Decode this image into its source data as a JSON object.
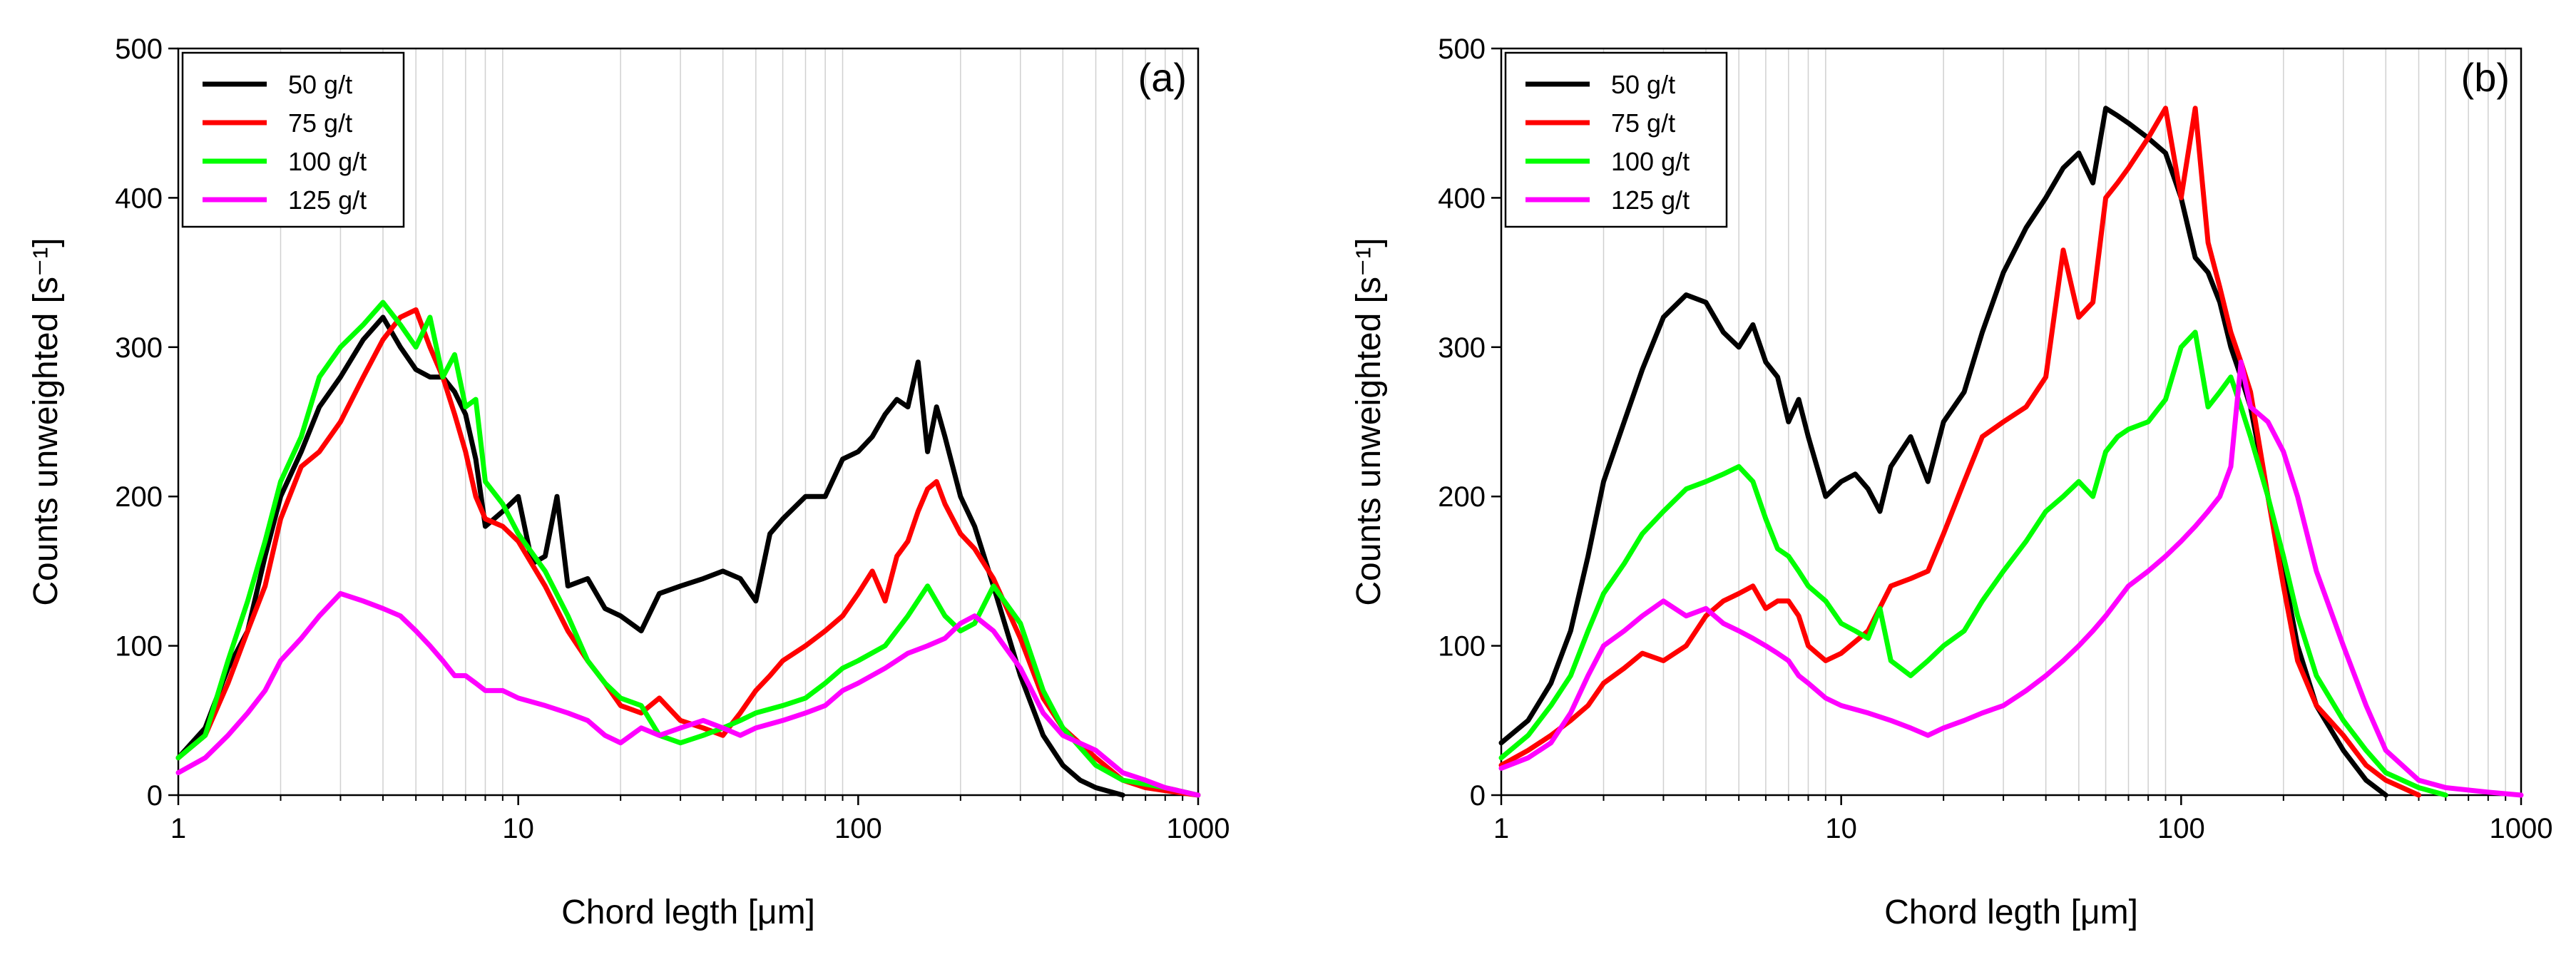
{
  "chart_data": [
    {
      "type": "line",
      "panel_label": "(a)",
      "xlabel": "Chord legth [μm]",
      "ylabel": "Counts unweighted [s⁻¹]",
      "xscale": "log",
      "xlim": [
        1,
        1000
      ],
      "ylim": [
        0,
        500
      ],
      "xticks": [
        1,
        10,
        100,
        1000
      ],
      "xtick_labels": [
        "1",
        "10",
        "100",
        "1000"
      ],
      "yticks": [
        0,
        100,
        200,
        300,
        400,
        500
      ],
      "ytick_labels": [
        "0",
        "100",
        "200",
        "300",
        "400",
        "500"
      ],
      "grid": "vertical minor lines",
      "legend_position": "top-left",
      "series": [
        {
          "name": "50 g/t",
          "color": "#000000",
          "x": [
            1.0,
            1.2,
            1.4,
            1.6,
            1.8,
            2.0,
            2.3,
            2.6,
            3.0,
            3.5,
            4.0,
            4.5,
            5.0,
            5.5,
            6.0,
            6.5,
            7.0,
            7.5,
            8.0,
            9.0,
            10,
            11,
            12,
            13,
            14,
            16,
            18,
            20,
            23,
            26,
            30,
            35,
            40,
            45,
            50,
            55,
            60,
            70,
            80,
            90,
            100,
            110,
            120,
            130,
            140,
            150,
            160,
            170,
            180,
            200,
            220,
            250,
            300,
            350,
            400,
            450,
            500,
            600
          ],
          "y": [
            25,
            45,
            85,
            110,
            160,
            200,
            230,
            260,
            280,
            305,
            320,
            300,
            285,
            280,
            280,
            270,
            255,
            225,
            180,
            190,
            200,
            155,
            160,
            200,
            140,
            145,
            125,
            120,
            110,
            135,
            140,
            145,
            150,
            145,
            130,
            175,
            185,
            200,
            200,
            225,
            230,
            240,
            255,
            265,
            260,
            290,
            230,
            260,
            240,
            200,
            180,
            140,
            80,
            40,
            20,
            10,
            5,
            0
          ]
        },
        {
          "name": "75 g/t",
          "color": "#ff0000",
          "x": [
            1.0,
            1.2,
            1.4,
            1.6,
            1.8,
            2.0,
            2.3,
            2.6,
            3.0,
            3.5,
            4.0,
            4.5,
            5.0,
            5.5,
            6.0,
            6.5,
            7.0,
            7.5,
            8.0,
            9.0,
            10,
            12,
            14,
            16,
            18,
            20,
            23,
            26,
            30,
            35,
            40,
            45,
            50,
            55,
            60,
            70,
            80,
            90,
            100,
            110,
            120,
            130,
            140,
            150,
            160,
            170,
            180,
            200,
            220,
            250,
            300,
            350,
            400,
            500,
            600,
            700,
            800,
            1000
          ],
          "y": [
            25,
            40,
            75,
            110,
            140,
            185,
            220,
            230,
            250,
            280,
            305,
            320,
            325,
            300,
            280,
            255,
            230,
            200,
            185,
            180,
            170,
            140,
            110,
            90,
            75,
            60,
            55,
            65,
            50,
            45,
            40,
            55,
            70,
            80,
            90,
            100,
            110,
            120,
            135,
            150,
            130,
            160,
            170,
            190,
            205,
            210,
            195,
            175,
            165,
            145,
            105,
            65,
            45,
            25,
            10,
            5,
            3,
            0
          ]
        },
        {
          "name": "100 g/t",
          "color": "#00ff00",
          "x": [
            1.0,
            1.2,
            1.4,
            1.6,
            1.8,
            2.0,
            2.3,
            2.6,
            3.0,
            3.5,
            4.0,
            4.5,
            5.0,
            5.5,
            6.0,
            6.5,
            7.0,
            7.5,
            8.0,
            9.0,
            10,
            12,
            14,
            16,
            18,
            20,
            23,
            26,
            30,
            35,
            40,
            45,
            50,
            60,
            70,
            80,
            90,
            100,
            120,
            140,
            160,
            180,
            200,
            220,
            250,
            300,
            350,
            400,
            500,
            600,
            800,
            1000
          ],
          "y": [
            25,
            40,
            90,
            130,
            170,
            210,
            240,
            280,
            300,
            315,
            330,
            315,
            300,
            320,
            280,
            295,
            260,
            265,
            210,
            195,
            175,
            150,
            120,
            90,
            75,
            65,
            60,
            40,
            35,
            40,
            45,
            50,
            55,
            60,
            65,
            75,
            85,
            90,
            100,
            120,
            140,
            120,
            110,
            115,
            140,
            115,
            70,
            45,
            20,
            10,
            5,
            0
          ]
        },
        {
          "name": "125 g/t",
          "color": "#ff00ff",
          "x": [
            1.0,
            1.2,
            1.4,
            1.6,
            1.8,
            2.0,
            2.3,
            2.6,
            3.0,
            3.5,
            4.0,
            4.5,
            5.0,
            5.5,
            6.0,
            6.5,
            7.0,
            7.5,
            8.0,
            9.0,
            10,
            12,
            14,
            16,
            18,
            20,
            23,
            26,
            30,
            35,
            40,
            45,
            50,
            60,
            70,
            80,
            90,
            100,
            120,
            140,
            160,
            180,
            200,
            220,
            250,
            300,
            350,
            400,
            500,
            600,
            700,
            800,
            1000
          ],
          "y": [
            15,
            25,
            40,
            55,
            70,
            90,
            105,
            120,
            135,
            130,
            125,
            120,
            110,
            100,
            90,
            80,
            80,
            75,
            70,
            70,
            65,
            60,
            55,
            50,
            40,
            35,
            45,
            40,
            45,
            50,
            45,
            40,
            45,
            50,
            55,
            60,
            70,
            75,
            85,
            95,
            100,
            105,
            115,
            120,
            110,
            85,
            55,
            40,
            30,
            15,
            10,
            5,
            0
          ]
        }
      ]
    },
    {
      "type": "line",
      "panel_label": "(b)",
      "xlabel": "Chord legth [μm]",
      "ylabel": "Counts unweighted [s⁻¹]",
      "xscale": "log",
      "xlim": [
        1,
        1000
      ],
      "ylim": [
        0,
        500
      ],
      "xticks": [
        1,
        10,
        100,
        1000
      ],
      "xtick_labels": [
        "1",
        "10",
        "100",
        "1000"
      ],
      "yticks": [
        0,
        100,
        200,
        300,
        400,
        500
      ],
      "ytick_labels": [
        "0",
        "100",
        "200",
        "300",
        "400",
        "500"
      ],
      "grid": "vertical minor lines",
      "legend_position": "top-left",
      "series": [
        {
          "name": "50 g/t",
          "color": "#000000",
          "x": [
            1.0,
            1.2,
            1.4,
            1.6,
            1.8,
            2.0,
            2.3,
            2.6,
            3.0,
            3.5,
            4.0,
            4.5,
            5.0,
            5.5,
            6.0,
            6.5,
            7.0,
            7.5,
            8.0,
            9.0,
            10,
            11,
            12,
            13,
            14,
            16,
            18,
            20,
            23,
            26,
            30,
            35,
            40,
            45,
            50,
            55,
            60,
            65,
            70,
            80,
            90,
            100,
            110,
            120,
            130,
            140,
            150,
            160,
            180,
            200,
            220,
            250,
            300,
            350,
            400
          ],
          "y": [
            35,
            50,
            75,
            110,
            160,
            210,
            250,
            285,
            320,
            335,
            330,
            310,
            300,
            315,
            290,
            280,
            250,
            265,
            240,
            200,
            210,
            215,
            205,
            190,
            220,
            240,
            210,
            250,
            270,
            310,
            350,
            380,
            400,
            420,
            430,
            410,
            460,
            455,
            450,
            440,
            430,
            400,
            360,
            350,
            330,
            300,
            280,
            260,
            200,
            150,
            100,
            60,
            30,
            10,
            0
          ]
        },
        {
          "name": "75 g/t",
          "color": "#ff0000",
          "x": [
            1.0,
            1.2,
            1.4,
            1.6,
            1.8,
            2.0,
            2.3,
            2.6,
            3.0,
            3.5,
            4.0,
            4.5,
            5.0,
            5.5,
            6.0,
            6.5,
            7.0,
            7.5,
            8.0,
            9.0,
            10,
            12,
            14,
            16,
            18,
            20,
            23,
            26,
            30,
            35,
            40,
            45,
            50,
            55,
            60,
            65,
            70,
            80,
            90,
            100,
            110,
            120,
            130,
            140,
            150,
            160,
            180,
            200,
            220,
            250,
            300,
            350,
            400,
            500
          ],
          "y": [
            20,
            30,
            40,
            50,
            60,
            75,
            85,
            95,
            90,
            100,
            120,
            130,
            135,
            140,
            125,
            130,
            130,
            120,
            100,
            90,
            95,
            110,
            140,
            145,
            150,
            175,
            210,
            240,
            250,
            260,
            280,
            365,
            320,
            330,
            400,
            410,
            420,
            440,
            460,
            400,
            460,
            370,
            340,
            310,
            290,
            270,
            200,
            140,
            90,
            60,
            40,
            20,
            10,
            0
          ]
        },
        {
          "name": "100 g/t",
          "color": "#00ff00",
          "x": [
            1.0,
            1.2,
            1.4,
            1.6,
            1.8,
            2.0,
            2.3,
            2.6,
            3.0,
            3.5,
            4.0,
            4.5,
            5.0,
            5.5,
            6.0,
            6.5,
            7.0,
            7.5,
            8.0,
            9.0,
            10,
            11,
            12,
            13,
            14,
            16,
            18,
            20,
            23,
            26,
            30,
            35,
            40,
            45,
            50,
            55,
            60,
            65,
            70,
            80,
            90,
            100,
            110,
            120,
            130,
            140,
            150,
            160,
            180,
            200,
            220,
            250,
            300,
            350,
            400,
            500,
            600
          ],
          "y": [
            25,
            40,
            60,
            80,
            110,
            135,
            155,
            175,
            190,
            205,
            210,
            215,
            220,
            210,
            185,
            165,
            160,
            150,
            140,
            130,
            115,
            110,
            105,
            125,
            90,
            80,
            90,
            100,
            110,
            130,
            150,
            170,
            190,
            200,
            210,
            200,
            230,
            240,
            245,
            250,
            265,
            300,
            310,
            260,
            270,
            280,
            260,
            240,
            200,
            160,
            120,
            80,
            50,
            30,
            15,
            5,
            0
          ]
        },
        {
          "name": "125 g/t",
          "color": "#ff00ff",
          "x": [
            1.0,
            1.2,
            1.4,
            1.6,
            1.8,
            2.0,
            2.3,
            2.6,
            3.0,
            3.5,
            4.0,
            4.5,
            5.0,
            5.5,
            6.0,
            6.5,
            7.0,
            7.5,
            8.0,
            9.0,
            10,
            12,
            14,
            16,
            18,
            20,
            23,
            26,
            30,
            35,
            40,
            45,
            50,
            55,
            60,
            70,
            80,
            90,
            100,
            110,
            120,
            130,
            140,
            150,
            160,
            180,
            200,
            220,
            250,
            300,
            350,
            400,
            500,
            600,
            800,
            1000
          ],
          "y": [
            18,
            25,
            35,
            55,
            80,
            100,
            110,
            120,
            130,
            120,
            125,
            115,
            110,
            105,
            100,
            95,
            90,
            80,
            75,
            65,
            60,
            55,
            50,
            45,
            40,
            45,
            50,
            55,
            60,
            70,
            80,
            90,
            100,
            110,
            120,
            140,
            150,
            160,
            170,
            180,
            190,
            200,
            220,
            290,
            260,
            250,
            230,
            200,
            150,
            100,
            60,
            30,
            10,
            5,
            2,
            0
          ]
        }
      ]
    }
  ]
}
